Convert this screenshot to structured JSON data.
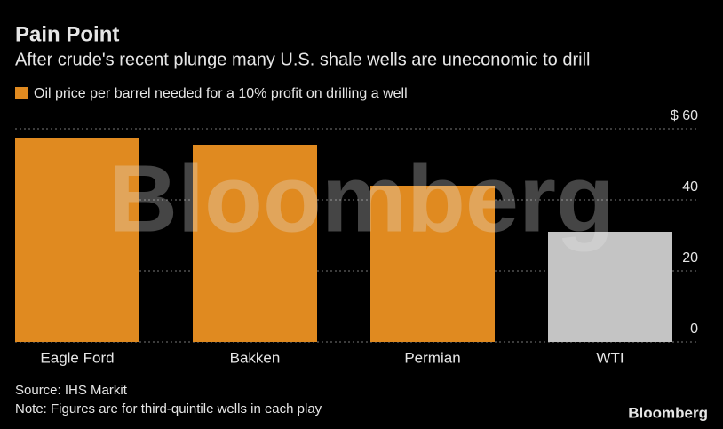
{
  "chart_data": {
    "type": "bar",
    "title": "Pain Point",
    "subtitle": "After crude's recent plunge many U.S. shale wells are uneconomic to drill",
    "legend_label": "Oil price per barrel needed for a 10% profit on drilling a well",
    "legend_color": "#e08a20",
    "categories": [
      "Eagle Ford",
      "Bakken",
      "Permian",
      "WTI"
    ],
    "values": [
      57.5,
      55.5,
      44,
      31
    ],
    "colors": [
      "#e08a20",
      "#e08a20",
      "#e08a20",
      "#c4c4c4"
    ],
    "ylim": [
      0,
      60
    ],
    "yticks": [
      0,
      20,
      40,
      {
        "value": 60,
        "label": "$ 60"
      }
    ],
    "grid": true,
    "watermark": "Bloomberg",
    "source": "Source: IHS Markit",
    "note": "Note: Figures are for third-quintile wells in each play",
    "logo": "Bloomberg"
  }
}
